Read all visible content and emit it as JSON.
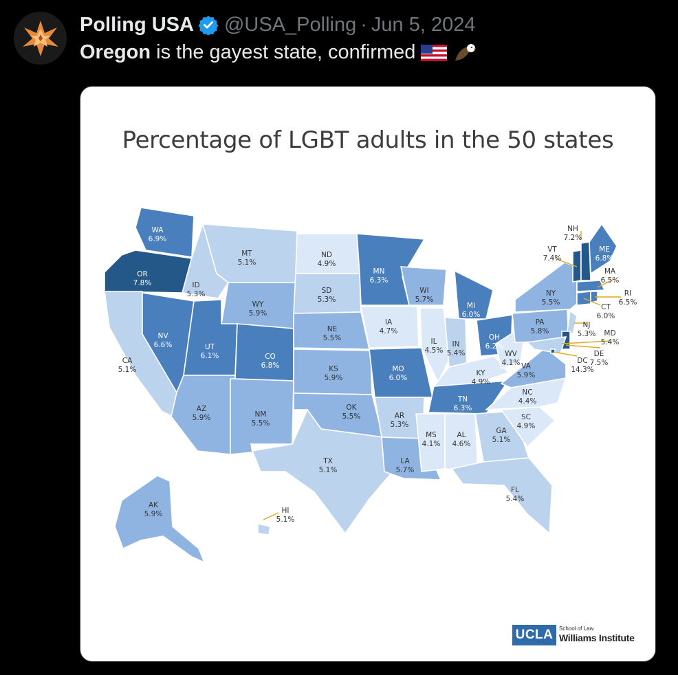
{
  "post": {
    "author": "Polling USA",
    "handle": "@USA_Polling",
    "separator": "·",
    "date": "Jun 5, 2024",
    "text_bold": "Oregon",
    "text_rest": " is the gayest state, confirmed",
    "emojis": [
      "us-flag-emoji",
      "eagle-emoji"
    ]
  },
  "icons": {
    "avatar": "polling-usa-logo-icon",
    "verified": "verified-badge-icon"
  },
  "colors": {
    "background": "#000000",
    "handle_gray": "#71767b",
    "verified_blue": "#1d9bf0",
    "bin_lightest": "#dbe8f8",
    "bin_light": "#bcd3ee",
    "bin_mid": "#8fb4e2",
    "bin_dark": "#4a7fbd",
    "bin_darkest": "#235889",
    "leader_line": "#e3a91f"
  },
  "chart_data": {
    "type": "choropleth-map",
    "title": "Percentage of LGBT adults in the 50 states",
    "unit": "%",
    "states": [
      {
        "code": "WA",
        "value": 6.9
      },
      {
        "code": "OR",
        "value": 7.8
      },
      {
        "code": "CA",
        "value": 5.1
      },
      {
        "code": "ID",
        "value": 5.3
      },
      {
        "code": "NV",
        "value": 6.6
      },
      {
        "code": "MT",
        "value": 5.1
      },
      {
        "code": "WY",
        "value": 5.9
      },
      {
        "code": "UT",
        "value": 6.1
      },
      {
        "code": "AZ",
        "value": 5.9
      },
      {
        "code": "CO",
        "value": 6.8
      },
      {
        "code": "NM",
        "value": 5.5
      },
      {
        "code": "ND",
        "value": 4.9
      },
      {
        "code": "SD",
        "value": 5.3
      },
      {
        "code": "NE",
        "value": 5.5
      },
      {
        "code": "KS",
        "value": 5.9
      },
      {
        "code": "OK",
        "value": 5.5
      },
      {
        "code": "TX",
        "value": 5.1
      },
      {
        "code": "MN",
        "value": 6.3
      },
      {
        "code": "IA",
        "value": 4.7
      },
      {
        "code": "MO",
        "value": 6.0
      },
      {
        "code": "AR",
        "value": 5.3
      },
      {
        "code": "LA",
        "value": 5.7
      },
      {
        "code": "WI",
        "value": 5.7
      },
      {
        "code": "IL",
        "value": 4.5
      },
      {
        "code": "MI",
        "value": 6.0
      },
      {
        "code": "IN",
        "value": 5.4
      },
      {
        "code": "OH",
        "value": 6.2
      },
      {
        "code": "KY",
        "value": 4.9
      },
      {
        "code": "TN",
        "value": 6.3
      },
      {
        "code": "MS",
        "value": 4.1
      },
      {
        "code": "AL",
        "value": 4.6
      },
      {
        "code": "GA",
        "value": 5.1
      },
      {
        "code": "FL",
        "value": 5.4
      },
      {
        "code": "SC",
        "value": 4.9
      },
      {
        "code": "NC",
        "value": 4.4
      },
      {
        "code": "VA",
        "value": 5.9
      },
      {
        "code": "WV",
        "value": 4.1
      },
      {
        "code": "PA",
        "value": 5.8
      },
      {
        "code": "NY",
        "value": 5.5
      },
      {
        "code": "NJ",
        "value": 5.3
      },
      {
        "code": "DE",
        "value": 7.5
      },
      {
        "code": "MD",
        "value": 5.4
      },
      {
        "code": "DC",
        "value": 14.3
      },
      {
        "code": "CT",
        "value": 6.0
      },
      {
        "code": "RI",
        "value": 6.5
      },
      {
        "code": "MA",
        "value": 6.5
      },
      {
        "code": "VT",
        "value": 7.4
      },
      {
        "code": "NH",
        "value": 7.2
      },
      {
        "code": "ME",
        "value": 6.8
      },
      {
        "code": "AK",
        "value": 5.9
      },
      {
        "code": "HI",
        "value": 5.1
      }
    ]
  },
  "logo": {
    "badge": "UCLA",
    "small": "School of Law",
    "big": "Williams Institute"
  }
}
